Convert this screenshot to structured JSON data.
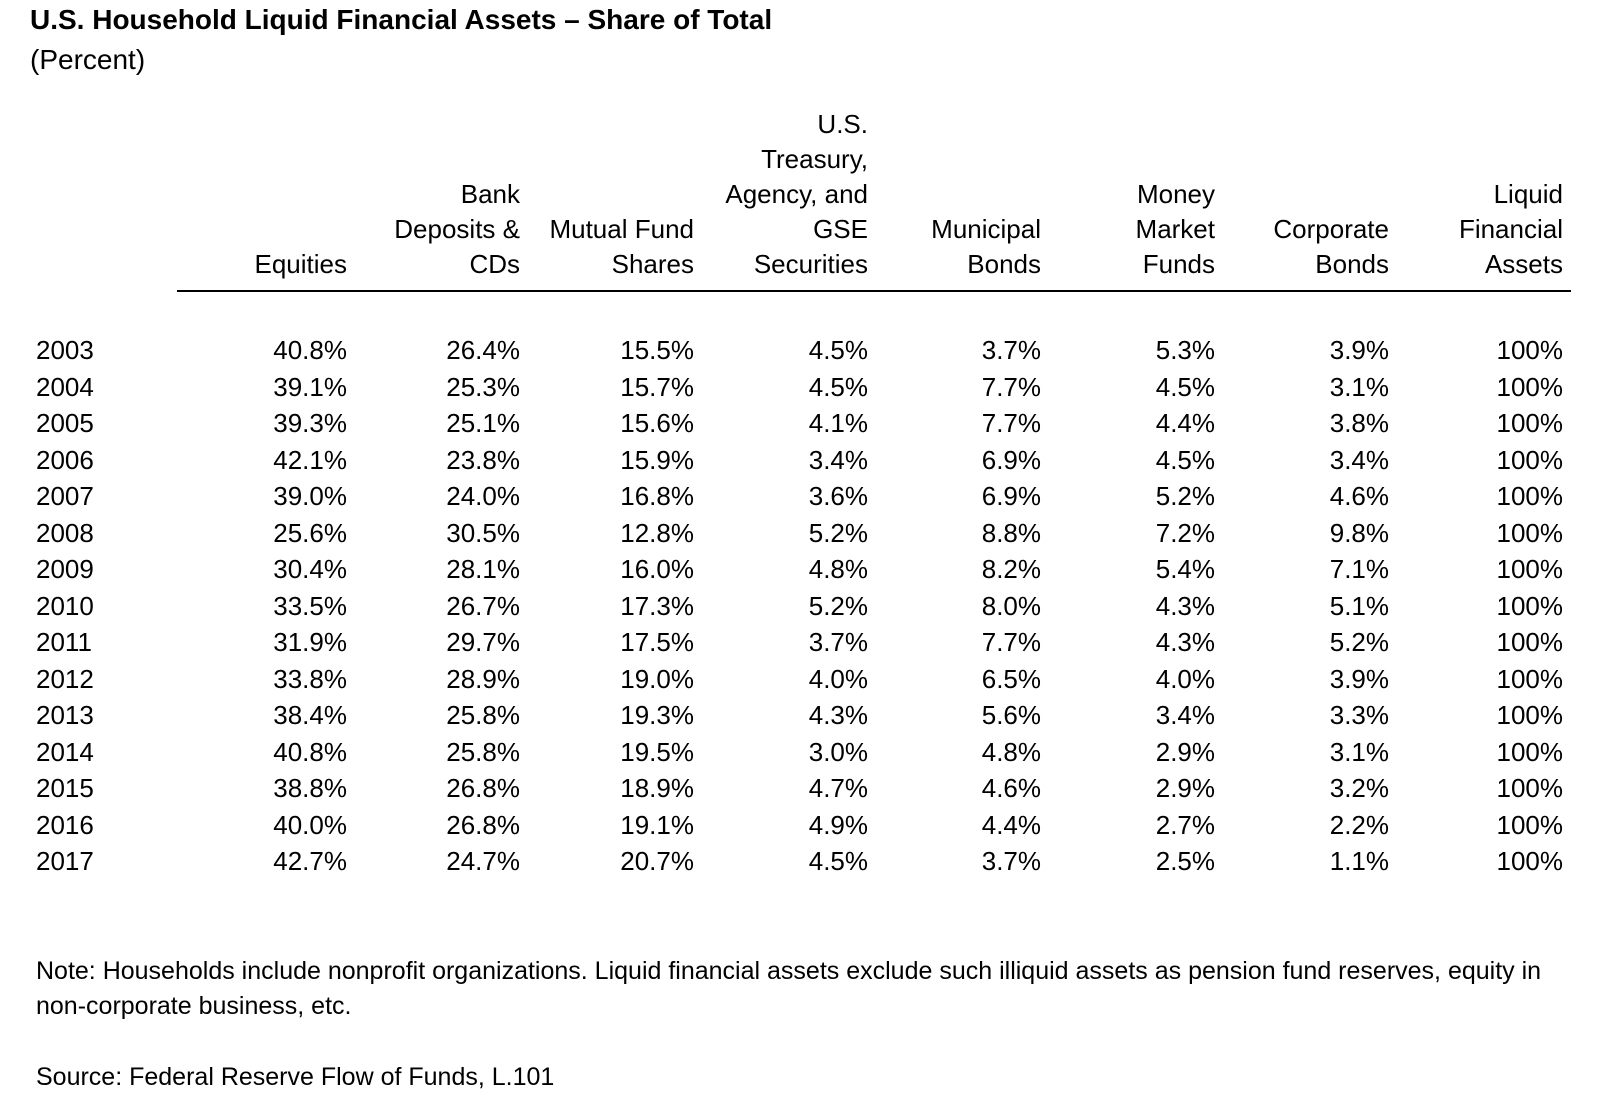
{
  "chart_data": {
    "type": "table",
    "title": "U.S. Household Liquid Financial Assets – Share of Total",
    "subtitle": "(Percent)",
    "columns": [
      {
        "key": "equities",
        "label": [
          "Equities"
        ]
      },
      {
        "key": "bank_deposits",
        "label": [
          "Bank",
          "Deposits &",
          "CDs"
        ]
      },
      {
        "key": "mutual_funds",
        "label": [
          "Mutual Fund",
          "Shares"
        ]
      },
      {
        "key": "treasury",
        "label": [
          "U.S.",
          "Treasury,",
          "Agency, and",
          "GSE",
          "Securities"
        ]
      },
      {
        "key": "municipal",
        "label": [
          "Municipal",
          "Bonds"
        ]
      },
      {
        "key": "money_market",
        "label": [
          "Money",
          "Market",
          "Funds"
        ]
      },
      {
        "key": "corporate",
        "label": [
          "Corporate",
          "Bonds"
        ]
      },
      {
        "key": "total",
        "label": [
          "Liquid",
          "Financial",
          "Assets"
        ]
      }
    ],
    "rows": [
      {
        "year": "2003",
        "values": [
          "40.8%",
          "26.4%",
          "15.5%",
          "4.5%",
          "3.7%",
          "5.3%",
          "3.9%",
          "100%"
        ]
      },
      {
        "year": "2004",
        "values": [
          "39.1%",
          "25.3%",
          "15.7%",
          "4.5%",
          "7.7%",
          "4.5%",
          "3.1%",
          "100%"
        ]
      },
      {
        "year": "2005",
        "values": [
          "39.3%",
          "25.1%",
          "15.6%",
          "4.1%",
          "7.7%",
          "4.4%",
          "3.8%",
          "100%"
        ]
      },
      {
        "year": "2006",
        "values": [
          "42.1%",
          "23.8%",
          "15.9%",
          "3.4%",
          "6.9%",
          "4.5%",
          "3.4%",
          "100%"
        ]
      },
      {
        "year": "2007",
        "values": [
          "39.0%",
          "24.0%",
          "16.8%",
          "3.6%",
          "6.9%",
          "5.2%",
          "4.6%",
          "100%"
        ]
      },
      {
        "year": "2008",
        "values": [
          "25.6%",
          "30.5%",
          "12.8%",
          "5.2%",
          "8.8%",
          "7.2%",
          "9.8%",
          "100%"
        ]
      },
      {
        "year": "2009",
        "values": [
          "30.4%",
          "28.1%",
          "16.0%",
          "4.8%",
          "8.2%",
          "5.4%",
          "7.1%",
          "100%"
        ]
      },
      {
        "year": "2010",
        "values": [
          "33.5%",
          "26.7%",
          "17.3%",
          "5.2%",
          "8.0%",
          "4.3%",
          "5.1%",
          "100%"
        ]
      },
      {
        "year": "2011",
        "values": [
          "31.9%",
          "29.7%",
          "17.5%",
          "3.7%",
          "7.7%",
          "4.3%",
          "5.2%",
          "100%"
        ]
      },
      {
        "year": "2012",
        "values": [
          "33.8%",
          "28.9%",
          "19.0%",
          "4.0%",
          "6.5%",
          "4.0%",
          "3.9%",
          "100%"
        ]
      },
      {
        "year": "2013",
        "values": [
          "38.4%",
          "25.8%",
          "19.3%",
          "4.3%",
          "5.6%",
          "3.4%",
          "3.3%",
          "100%"
        ]
      },
      {
        "year": "2014",
        "values": [
          "40.8%",
          "25.8%",
          "19.5%",
          "3.0%",
          "4.8%",
          "2.9%",
          "3.1%",
          "100%"
        ]
      },
      {
        "year": "2015",
        "values": [
          "38.8%",
          "26.8%",
          "18.9%",
          "4.7%",
          "4.6%",
          "2.9%",
          "3.2%",
          "100%"
        ]
      },
      {
        "year": "2016",
        "values": [
          "40.0%",
          "26.8%",
          "19.1%",
          "4.9%",
          "4.4%",
          "2.7%",
          "2.2%",
          "100%"
        ]
      },
      {
        "year": "2017",
        "values": [
          "42.7%",
          "24.7%",
          "20.7%",
          "4.5%",
          "3.7%",
          "2.5%",
          "1.1%",
          "100%"
        ]
      }
    ],
    "note": "Note: Households include nonprofit organizations. Liquid financial assets exclude such illiquid assets as pension fund reserves, equity in non-corporate business, etc.",
    "source": "Source: Federal Reserve Flow of Funds, L.101"
  }
}
